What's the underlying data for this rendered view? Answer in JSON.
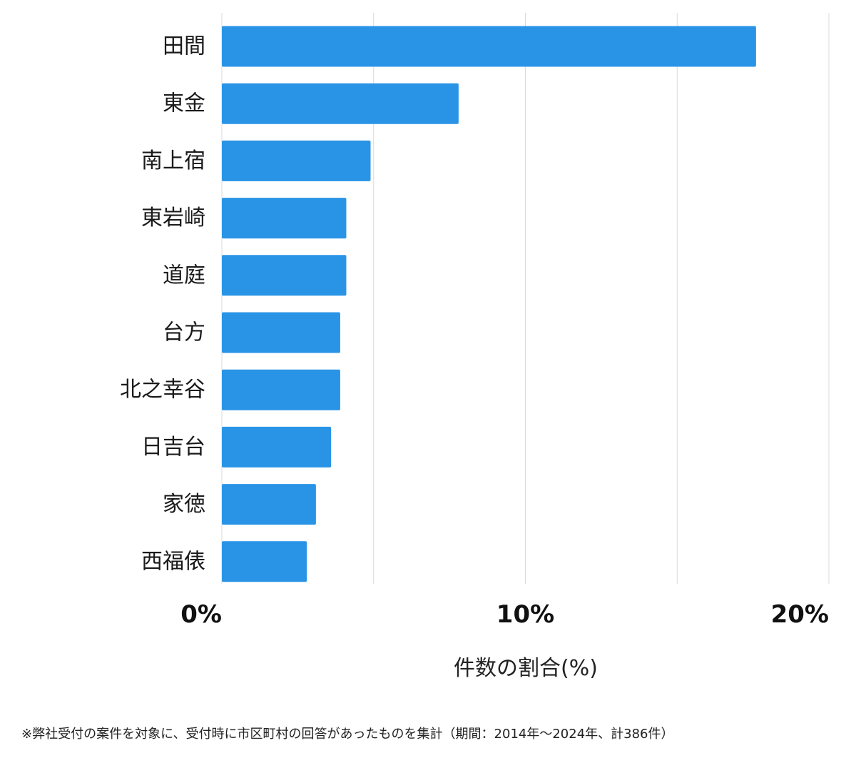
{
  "chart_data": {
    "type": "bar",
    "orientation": "horizontal",
    "categories": [
      "田間",
      "東金",
      "南上宿",
      "東岩崎",
      "道庭",
      "台方",
      "北之幸谷",
      "日吉台",
      "家徳",
      "西福俵"
    ],
    "values": [
      17.6,
      7.8,
      4.9,
      4.1,
      4.1,
      3.9,
      3.9,
      3.6,
      3.1,
      2.8
    ],
    "xlim": [
      0,
      20
    ],
    "ticks": [
      {
        "value": 0,
        "label": "0%"
      },
      {
        "value": 10,
        "label": "10%"
      },
      {
        "value": 20,
        "label": "20%"
      }
    ],
    "xlabel": "件数の割合(%)",
    "ylabel": "",
    "grid": true,
    "bar_color": "#2994e6",
    "grid_color": "#d9d9d9"
  },
  "footnote": "※弊社受付の案件を対象に、受付時に市区町村の回答があったものを集計（期間：2014年～2024年、計386件）"
}
